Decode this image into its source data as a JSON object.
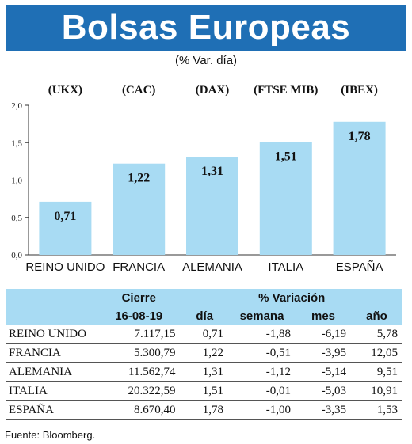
{
  "header": {
    "title": "Bolsas Europeas",
    "subtitle": "(% Var. día)"
  },
  "chart_data": {
    "type": "bar",
    "categories": [
      "REINO UNIDO",
      "FRANCIA",
      "ALEMANIA",
      "ITALIA",
      "ESPAÑA"
    ],
    "indices": [
      "(UKX)",
      "(CAC)",
      "(DAX)",
      "(FTSE MIB)",
      "(IBEX)"
    ],
    "values": [
      0.71,
      1.22,
      1.31,
      1.51,
      1.78
    ],
    "value_labels": [
      "0,71",
      "1,22",
      "1,31",
      "1,51",
      "1,78"
    ],
    "ylim": [
      0,
      2
    ],
    "yticks": [
      0,
      0.5,
      1.0,
      1.5,
      2.0
    ],
    "ytick_labels": [
      "0,0",
      "0,5",
      "1,0",
      "1,5",
      "2,0"
    ],
    "grid": false,
    "bar_color": "#a8dbf3"
  },
  "table": {
    "group_headers": [
      "Cierre",
      "% Variación"
    ],
    "columns": [
      "16-08-19",
      "día",
      "semana",
      "mes",
      "año"
    ],
    "rows": [
      [
        "REINO UNIDO",
        "7.117,15",
        "0,71",
        "-1,88",
        "-6,19",
        "5,78"
      ],
      [
        "FRANCIA",
        "5.300,79",
        "1,22",
        "-0,51",
        "-3,95",
        "12,05"
      ],
      [
        "ALEMANIA",
        "11.562,74",
        "1,31",
        "-1,12",
        "-5,14",
        "9,51"
      ],
      [
        "ITALIA",
        "20.322,59",
        "1,51",
        "-0,01",
        "-5,03",
        "10,91"
      ],
      [
        "ESPAÑA",
        "8.670,40",
        "1,78",
        "-1,00",
        "-3,35",
        "1,53"
      ]
    ]
  },
  "footer": {
    "source": "Fuente: Bloomberg."
  },
  "colors": {
    "banner": "#1f6fb5",
    "accent": "#a8dbf3"
  }
}
